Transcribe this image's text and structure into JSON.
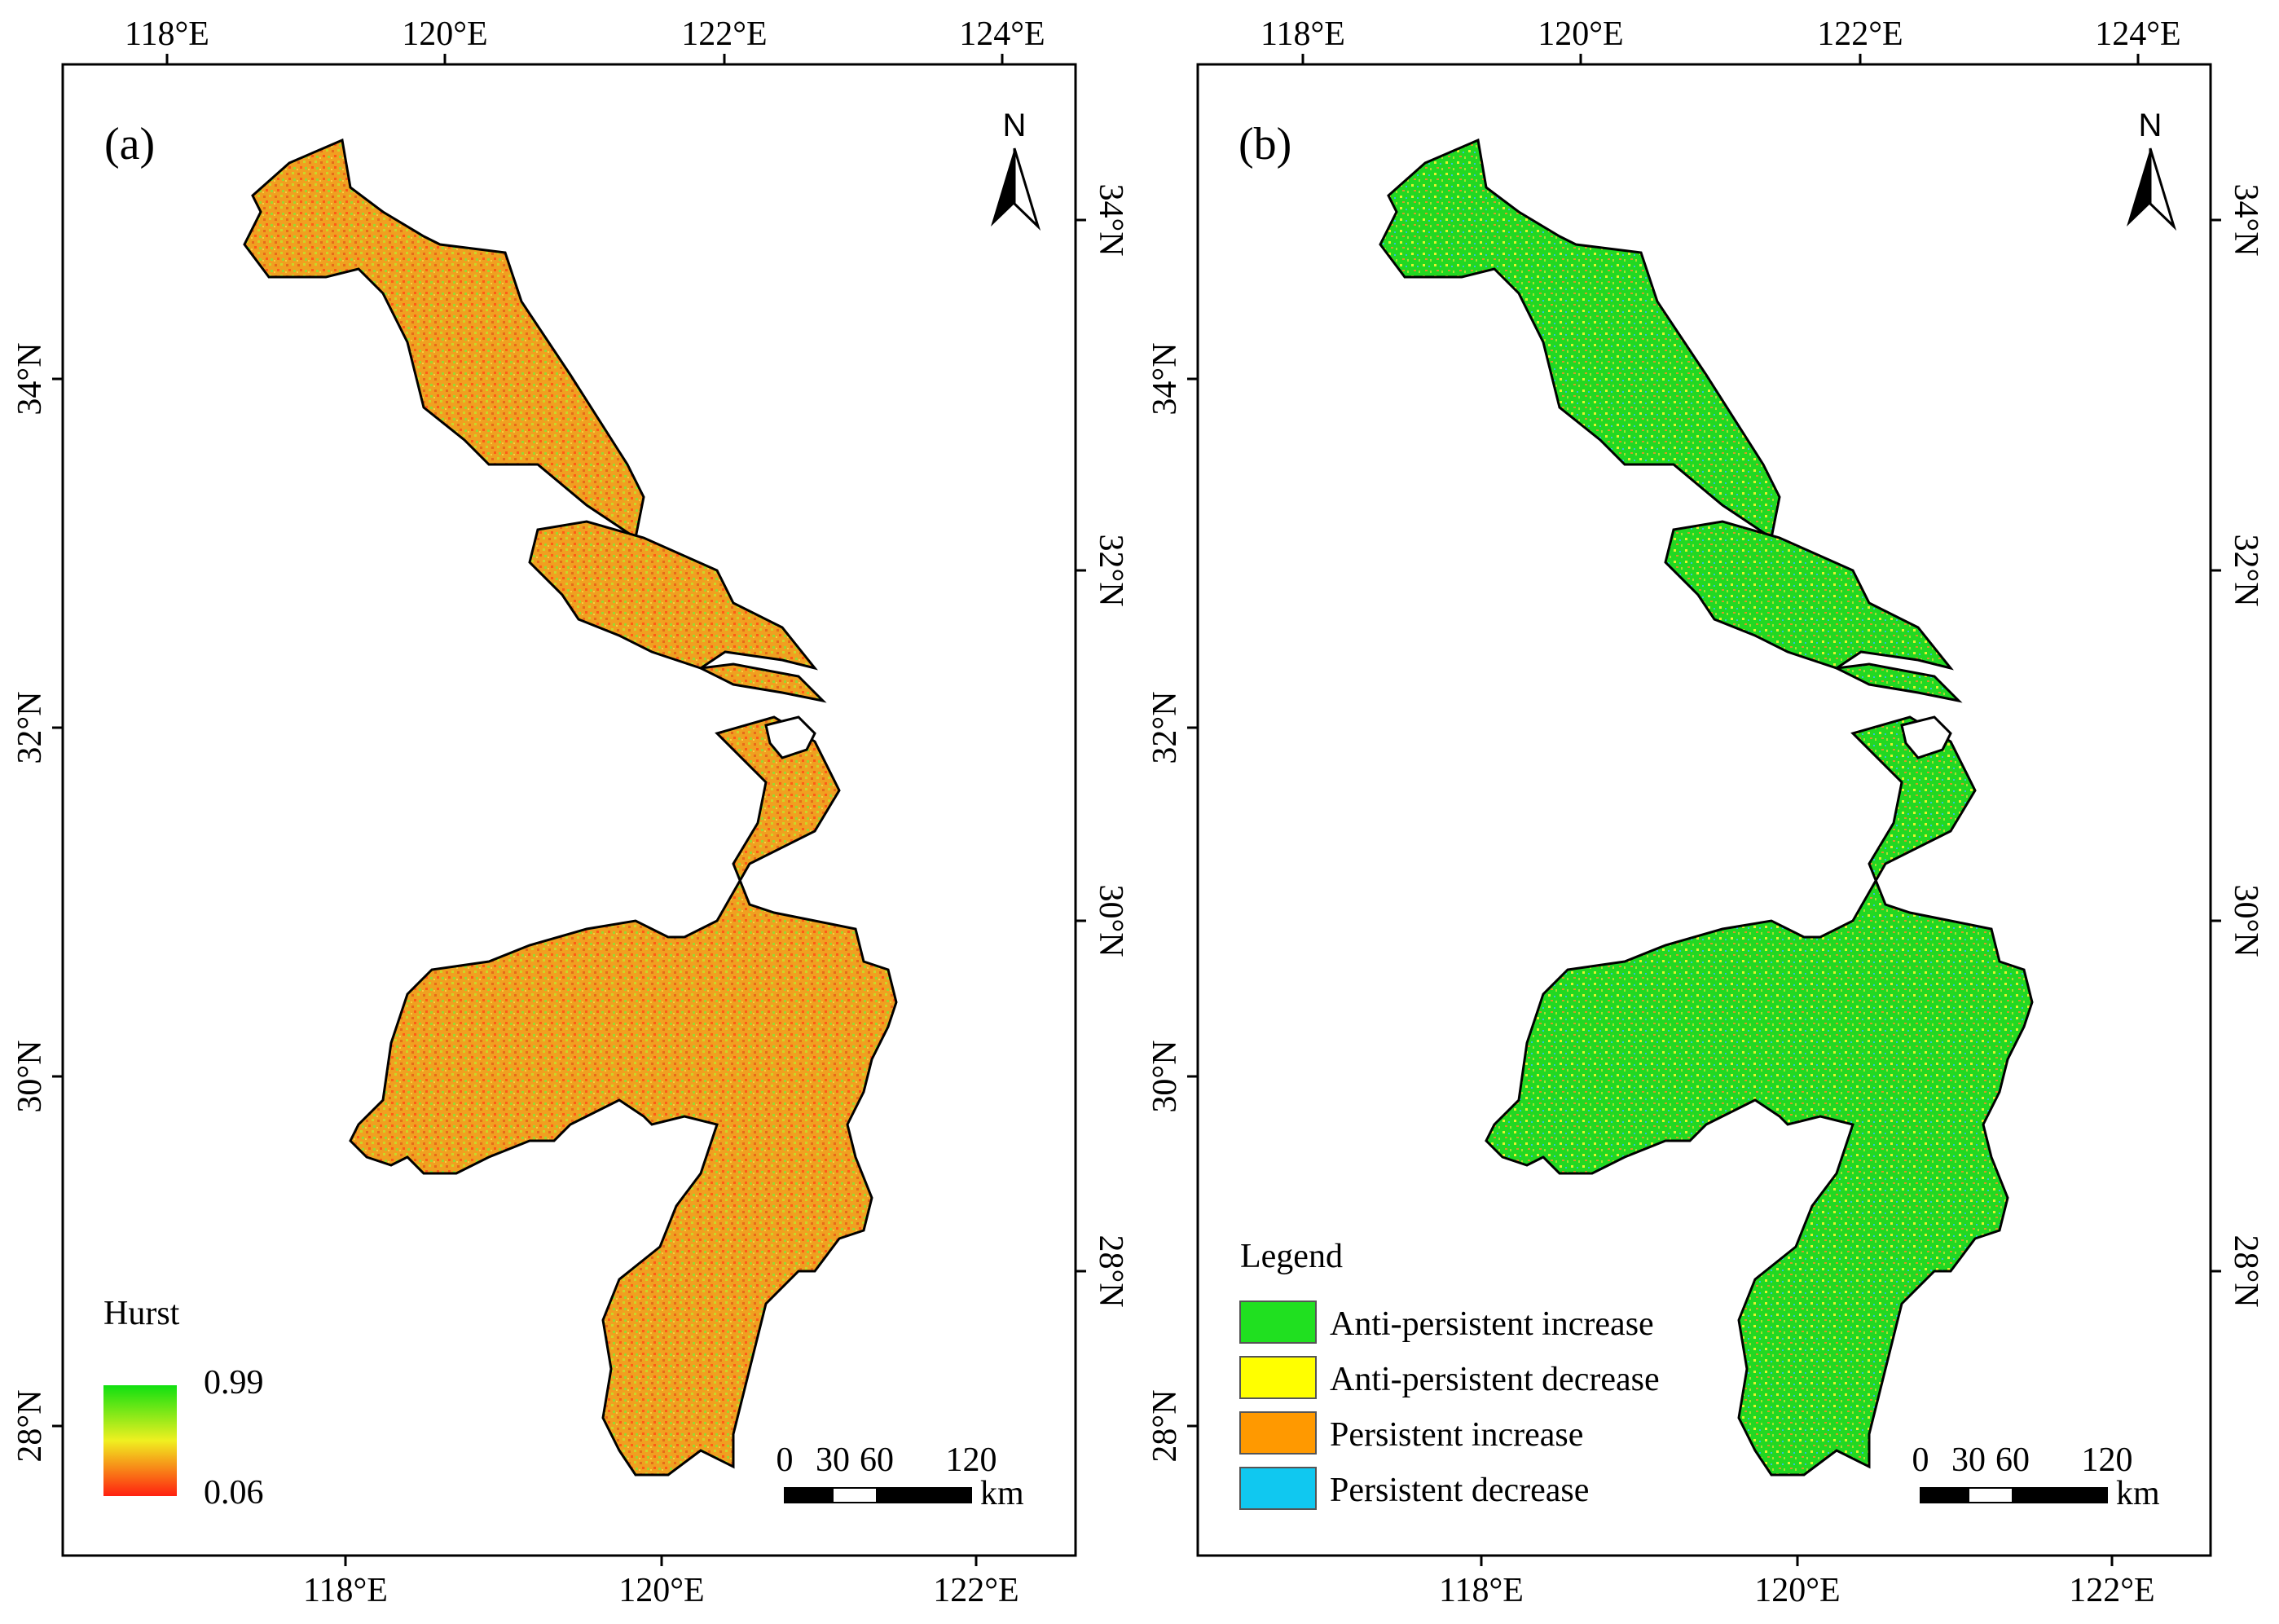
{
  "panel_a": {
    "label": "(a)",
    "lon_top": [
      "118°E",
      "120°E",
      "122°E",
      "124°E"
    ],
    "lon_bottom": [
      "118°E",
      "120°E",
      "122°E"
    ],
    "lat_left": [
      "34°N",
      "32°N",
      "30°N",
      "28°N"
    ],
    "lat_right": [
      "34°N",
      "32°N",
      "30°N",
      "28°N"
    ],
    "north": "N",
    "legend": {
      "title": "Hurst",
      "max": "0.99",
      "min": "0.06",
      "colors": {
        "high": "#10e010",
        "mid": "#f0f020",
        "low": "#ff2010"
      }
    },
    "scale": {
      "ticks": [
        "0",
        "30",
        "60",
        "120"
      ],
      "unit": "km"
    }
  },
  "panel_b": {
    "label": "(b)",
    "lon_top": [
      "118°E",
      "120°E",
      "122°E",
      "124°E"
    ],
    "lon_bottom": [
      "118°E",
      "120°E",
      "122°E"
    ],
    "lat_left": [
      "34°N",
      "32°N",
      "30°N",
      "28°N"
    ],
    "lat_right": [
      "34°N",
      "32°N",
      "30°N",
      "28°N"
    ],
    "north": "N",
    "legend": {
      "title": "Legend",
      "items": [
        {
          "label": "Anti-persistent increase",
          "color": "#20e020"
        },
        {
          "label": "Anti-persistent decrease",
          "color": "#ffff00"
        },
        {
          "label": "Persistent increase",
          "color": "#ff9900"
        },
        {
          "label": "Persistent decrease",
          "color": "#10c8f0"
        }
      ]
    },
    "scale": {
      "ticks": [
        "0",
        "30",
        "60",
        "120"
      ],
      "unit": "km"
    }
  }
}
